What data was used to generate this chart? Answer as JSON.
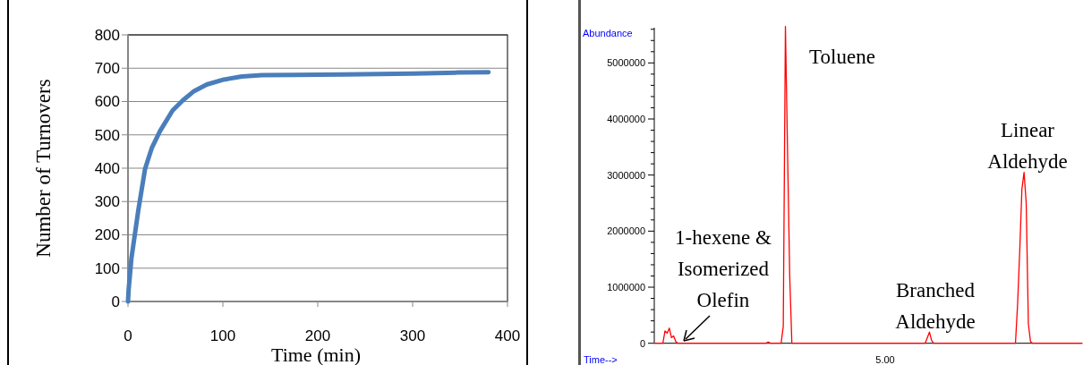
{
  "chart_data": [
    {
      "type": "line",
      "xlabel": "Time (min)",
      "ylabel": "Number of Turnovers",
      "xlim": [
        0,
        400
      ],
      "ylim": [
        0,
        800
      ],
      "xticks": [
        0,
        100,
        200,
        300,
        400
      ],
      "yticks": [
        0,
        100,
        200,
        300,
        400,
        500,
        600,
        700,
        800
      ],
      "grid": "y",
      "series": [
        {
          "color": "#4a7ebb",
          "x": [
            0,
            0.7,
            3.6,
            10.9,
            18,
            25,
            33.7,
            47,
            58,
            69,
            83,
            101,
            120,
            141,
            174,
            228,
            301,
            348,
            380
          ],
          "values": [
            0,
            36,
            129,
            274,
            398,
            460,
            511,
            573,
            604,
            630,
            651,
            666,
            675,
            679,
            680,
            681,
            684,
            687,
            688
          ]
        }
      ]
    },
    {
      "type": "line",
      "xlabel": "Time-->",
      "ylabel": "Abundance",
      "ylim": [
        0,
        5650000
      ],
      "categories": [
        null,
        null,
        null,
        null,
        null,
        null,
        null,
        null,
        null,
        null,
        null,
        null,
        null,
        null,
        null,
        null,
        null,
        null,
        null,
        null,
        null,
        null,
        null,
        null,
        null,
        null,
        null,
        null,
        null,
        null,
        null,
        null,
        null,
        null,
        null,
        null,
        null,
        null,
        null,
        null,
        null,
        null,
        null,
        null,
        null,
        null,
        null,
        null,
        null,
        null,
        null,
        null,
        null,
        null,
        null,
        null,
        null,
        null,
        null,
        null,
        null,
        null,
        null,
        null,
        null,
        null,
        null,
        null,
        null,
        null,
        null,
        null,
        null,
        null,
        null,
        null,
        null,
        null,
        null,
        null,
        null,
        null,
        null,
        null,
        null,
        null,
        null,
        null,
        null,
        null,
        null,
        null,
        null,
        null,
        null,
        null,
        null,
        null,
        null,
        null,
        null,
        null,
        null,
        null,
        null,
        null,
        null,
        null,
        null,
        null,
        null,
        null,
        null,
        null,
        null,
        null,
        null,
        null,
        null,
        null,
        null,
        null,
        null,
        null,
        null,
        null,
        null,
        null,
        null,
        null,
        null,
        null,
        null,
        null,
        null,
        null,
        null,
        null,
        null,
        null,
        null,
        null,
        null,
        null,
        null,
        null,
        null,
        null,
        null,
        null,
        null,
        null,
        null,
        null,
        null,
        null,
        null,
        null,
        null,
        null,
        null,
        null,
        null,
        null,
        null,
        null,
        null,
        null,
        null,
        null,
        null,
        null,
        null,
        null,
        null,
        null,
        null,
        null,
        null,
        null,
        null,
        null,
        null,
        null,
        null,
        null,
        null,
        null,
        null,
        null,
        null,
        null,
        null,
        null,
        null,
        null,
        null,
        null,
        null,
        null
      ],
      "yticks": [
        0,
        {
          "value": 200000,
          "label": null
        },
        {
          "value": 400000,
          "label": null
        },
        {
          "value": 600000,
          "label": null
        },
        {
          "value": 800000,
          "label": null
        },
        1000000,
        {
          "value": 1200000,
          "label": null
        },
        {
          "value": 1400000,
          "label": null
        },
        {
          "value": 1600000,
          "label": null
        },
        {
          "value": 1800000,
          "label": null
        },
        2000000,
        {
          "value": 2200000,
          "label": null
        },
        {
          "value": 2400000,
          "label": null
        },
        {
          "value": 2600000,
          "label": null
        },
        {
          "value": 2800000,
          "label": null
        },
        3000000,
        {
          "value": 3200000,
          "label": null
        },
        {
          "value": 3400000,
          "label": null
        },
        {
          "value": 3600000,
          "label": null
        },
        {
          "value": 3800000,
          "label": null
        },
        4000000,
        {
          "value": 4200000,
          "label": null
        },
        {
          "value": 4400000,
          "label": null
        },
        {
          "value": 4600000,
          "label": null
        },
        {
          "value": 4800000,
          "label": null
        },
        5000000,
        {
          "value": 5200000,
          "label": null
        },
        {
          "value": 5400000,
          "label": null
        },
        {
          "value": 5600000,
          "label": null
        }
      ],
      "series": [
        {
          "color": "#ff0000",
          "values": [
            0,
            0,
            0,
            0,
            0,
            220000,
            180000,
            270000,
            100000,
            130000,
            30000,
            0,
            0,
            0,
            0,
            0,
            0,
            0,
            0,
            0,
            0,
            0,
            0,
            0,
            0,
            0,
            0,
            0,
            0,
            0,
            0,
            0,
            0,
            0,
            0,
            0,
            0,
            0,
            0,
            0,
            0,
            0,
            0,
            0,
            0,
            0,
            0,
            0,
            0,
            0,
            0,
            0,
            0,
            20000,
            0,
            0,
            0,
            0,
            0,
            0,
            300000,
            5650000,
            3400000,
            1200000,
            0,
            0,
            0,
            0,
            0,
            0,
            0,
            0,
            0,
            0,
            0,
            0,
            0,
            0,
            0,
            0,
            0,
            0,
            0,
            0,
            0,
            0,
            0,
            0,
            0,
            0,
            0,
            0,
            0,
            0,
            0,
            0,
            0,
            0,
            0,
            0,
            0,
            0,
            0,
            0,
            0,
            0,
            0,
            0,
            0,
            0,
            0,
            0,
            0,
            0,
            0,
            0,
            0,
            0,
            0,
            0,
            0,
            0,
            0,
            0,
            0,
            0,
            0,
            100000,
            200000,
            50000,
            0,
            0,
            0,
            0,
            0,
            0,
            0,
            0,
            0,
            0,
            0,
            0,
            0,
            0,
            0,
            0,
            0,
            0,
            0,
            0,
            0,
            0,
            0,
            0,
            0,
            0,
            0,
            0,
            0,
            0,
            0,
            0,
            0,
            0,
            0,
            0,
            0,
            0,
            0,
            700000,
            1660000,
            2750000,
            3050000,
            2500000,
            350000,
            30000,
            0,
            0,
            0,
            0,
            0,
            0,
            0,
            0,
            0,
            0,
            0,
            0,
            0,
            0,
            0,
            0,
            0,
            0,
            0,
            0,
            0,
            0,
            0,
            0
          ]
        }
      ],
      "annotations": [
        "Toluene",
        "Linear\nAldehyde",
        "Branched\nAldehyde",
        "1-hexene &\nIsomerized\nOlefin",
        "5.00"
      ]
    }
  ]
}
